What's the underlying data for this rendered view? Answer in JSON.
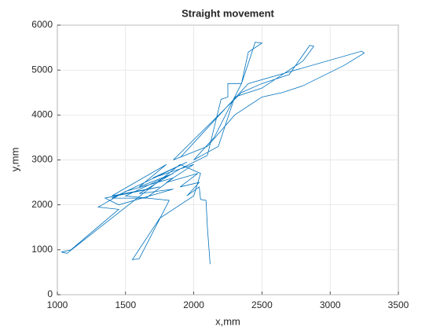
{
  "chart_data": {
    "type": "line",
    "title": "Straight movement",
    "xlabel": "x,mm",
    "ylabel": "y,mm",
    "xlim": [
      1000,
      3500
    ],
    "xticks": [
      1000,
      1500,
      2000,
      2500,
      3000,
      3500
    ],
    "ylim": [
      0,
      6000
    ],
    "yticks": [
      0,
      1000,
      2000,
      3000,
      4000,
      5000,
      6000
    ],
    "grid": true,
    "series": [
      {
        "color": "#0072bd",
        "x": [
          2120,
          2100,
          2090,
          2050,
          2040,
          1950,
          2040,
          1900,
          2030,
          1800,
          2000,
          1700,
          1950,
          1400,
          1650,
          1850,
          1500,
          1300,
          1450,
          1100,
          1030,
          1070,
          1900,
          2050,
          2000,
          1750,
          1550,
          1600,
          1820,
          1500,
          1850,
          1600,
          1800,
          1400,
          1750,
          1350,
          1450,
          1850,
          1600,
          1900,
          2100,
          2200,
          2250,
          2250,
          2350,
          2400,
          2450,
          2500,
          2400,
          2350,
          2150,
          2000,
          2180,
          2300,
          2500,
          2800,
          2880,
          2850,
          2700,
          2500,
          2350,
          1850,
          2100,
          2300,
          2500,
          2650,
          2800,
          3100,
          3250,
          3230,
          2400,
          1900
        ],
        "values": [
          680,
          1500,
          2100,
          2120,
          2400,
          2200,
          2500,
          2400,
          2700,
          2500,
          2900,
          2600,
          2950,
          2150,
          2150,
          2600,
          2300,
          1950,
          1900,
          1000,
          950,
          920,
          2900,
          2700,
          2200,
          1700,
          780,
          800,
          2100,
          2200,
          2700,
          2400,
          2900,
          2200,
          2400,
          2150,
          2000,
          2350,
          2250,
          2800,
          3100,
          4350,
          4400,
          4700,
          4700,
          5150,
          5620,
          5600,
          5400,
          4700,
          3500,
          3000,
          3300,
          4400,
          4600,
          5200,
          5530,
          5550,
          4900,
          4700,
          4500,
          3000,
          3300,
          4000,
          4400,
          4500,
          4650,
          5100,
          5380,
          5420,
          4700,
          3050
        ]
      }
    ]
  }
}
